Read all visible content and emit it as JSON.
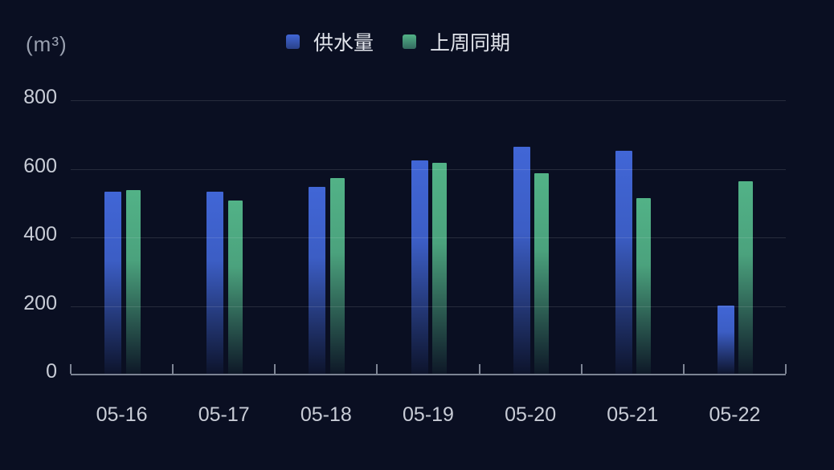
{
  "unit_label": "(m³)",
  "colors": {
    "background": "#0a0f22",
    "series_blue": "#4166d6",
    "series_green": "#52b287",
    "gridline": "rgba(255,255,255,0.12)",
    "axis": "#7d8494",
    "tick_label": "#c8ccd6",
    "legend_text": "#e2e5ec",
    "unit_text": "#9aa1b0"
  },
  "chart_data": {
    "type": "bar",
    "title": "",
    "categories": [
      "05-16",
      "05-17",
      "05-18",
      "05-19",
      "05-20",
      "05-21",
      "05-22"
    ],
    "series": [
      {
        "name": "供水量",
        "key": "supply",
        "color": "#4166d6",
        "values": [
          533,
          533,
          547,
          625,
          665,
          652,
          201
        ]
      },
      {
        "name": "上周同期",
        "key": "lastweek",
        "color": "#52b287",
        "values": [
          538,
          507,
          574,
          617,
          587,
          515,
          564
        ]
      }
    ],
    "xlabel": "",
    "ylabel": "(m³)",
    "ylim": [
      0,
      800
    ],
    "yticks": [
      0,
      200,
      400,
      600,
      800
    ],
    "grid": true,
    "legend_position": "top-center"
  }
}
